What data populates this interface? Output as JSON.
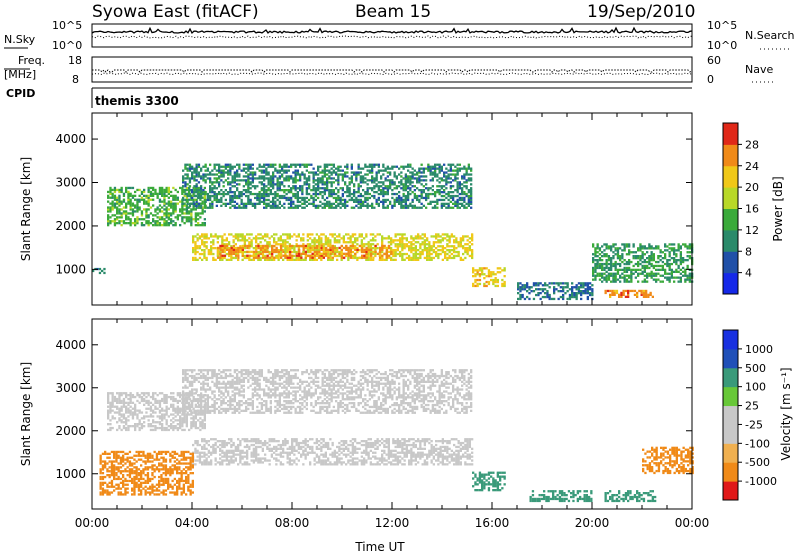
{
  "header": {
    "station": "Syowa East (fitACF)",
    "beam": "Beam 15",
    "date": "19/Sep/2010"
  },
  "noise_panel": {
    "left_label": "N.Sky",
    "left_ticks": [
      "10^5",
      "10^0"
    ],
    "right_label": "N.Search",
    "right_ticks": [
      "10^5",
      "10^0"
    ]
  },
  "freq_panel": {
    "left_label_1": "Freq.",
    "left_label_2": "[MHz]",
    "left_ticks": [
      "18",
      "8"
    ],
    "right_label": "Nave",
    "right_ticks": [
      "60",
      "0"
    ]
  },
  "cpid_panel": {
    "label": "CPID",
    "program": "themis 3300"
  },
  "colors": {
    "power": [
      "#1528e8",
      "#2050a8",
      "#2a8a6a",
      "#3aaa3a",
      "#b8d828",
      "#f0c818",
      "#f08a18",
      "#e02818"
    ],
    "velocity": [
      "#e01818",
      "#f08a18",
      "#f0b050",
      "#c8c8c8",
      "#c8c8c8",
      "#68c838",
      "#3a9a7a",
      "#2050b8",
      "#1830e0"
    ]
  },
  "chart_data": [
    {
      "type": "heatmap",
      "name": "power",
      "xlabel": "",
      "ylabel": "Slant Range [km]",
      "xlim": [
        0,
        24
      ],
      "ylim": [
        180,
        4600
      ],
      "yticks": [
        "1000",
        "2000",
        "3000",
        "4000"
      ],
      "colorbar": {
        "label": "Power [dB]",
        "tick_labels": [
          "4",
          "8",
          "12",
          "16",
          "20",
          "24",
          "28"
        ],
        "range": [
          0,
          32
        ]
      },
      "bands": [
        {
          "t_start": 0.0,
          "t_end": 0.5,
          "range_start": 900,
          "range_end": 1000,
          "value": 10
        },
        {
          "t_start": 0.6,
          "t_end": 4.5,
          "range_start": 2000,
          "range_end": 2900,
          "value": 14
        },
        {
          "t_start": 3.6,
          "t_end": 15.2,
          "range_start": 2400,
          "range_end": 3400,
          "value": 10
        },
        {
          "t_start": 4.0,
          "t_end": 15.2,
          "range_start": 1200,
          "range_end": 1800,
          "value": 20
        },
        {
          "t_start": 5.0,
          "t_end": 12.0,
          "range_start": 1250,
          "range_end": 1550,
          "value": 26
        },
        {
          "t_start": 15.2,
          "t_end": 16.5,
          "range_start": 600,
          "range_end": 1050,
          "value": 22
        },
        {
          "t_start": 17.0,
          "t_end": 20.0,
          "range_start": 300,
          "range_end": 700,
          "value": 8
        },
        {
          "t_start": 20.5,
          "t_end": 22.5,
          "range_start": 350,
          "range_end": 500,
          "value": 26
        },
        {
          "t_start": 20.0,
          "t_end": 24.0,
          "range_start": 700,
          "range_end": 1600,
          "value": 12
        }
      ]
    },
    {
      "type": "heatmap",
      "name": "velocity",
      "xlabel": "Time UT",
      "ylabel": "Slant Range [km]",
      "xlim": [
        0,
        24
      ],
      "ylim": [
        180,
        4600
      ],
      "xticks": [
        "00:00",
        "04:00",
        "08:00",
        "12:00",
        "16:00",
        "20:00",
        "00:00"
      ],
      "yticks": [
        "1000",
        "2000",
        "3000",
        "4000"
      ],
      "colorbar": {
        "label": "Velocity [m s⁻¹]",
        "tick_labels": [
          "1000",
          "500",
          "100",
          "25",
          "-25",
          "-100",
          "-500",
          "-1000"
        ]
      },
      "bands": [
        {
          "t_start": 0.6,
          "t_end": 4.5,
          "range_start": 2000,
          "range_end": 2900,
          "value": 0
        },
        {
          "t_start": 3.6,
          "t_end": 15.2,
          "range_start": 2400,
          "range_end": 3400,
          "value": 0
        },
        {
          "t_start": 4.0,
          "t_end": 15.2,
          "range_start": 1200,
          "range_end": 1800,
          "value": 0
        },
        {
          "t_start": 0.3,
          "t_end": 4.0,
          "range_start": 500,
          "range_end": 1500,
          "value": -200
        },
        {
          "t_start": 15.2,
          "t_end": 16.5,
          "range_start": 600,
          "range_end": 1050,
          "value": 150
        },
        {
          "t_start": 17.5,
          "t_end": 20.0,
          "range_start": 350,
          "range_end": 600,
          "value": 200
        },
        {
          "t_start": 20.5,
          "t_end": 22.5,
          "range_start": 350,
          "range_end": 600,
          "value": 150
        },
        {
          "t_start": 22.0,
          "t_end": 24.0,
          "range_start": 1000,
          "range_end": 1600,
          "value": -400
        }
      ]
    }
  ]
}
